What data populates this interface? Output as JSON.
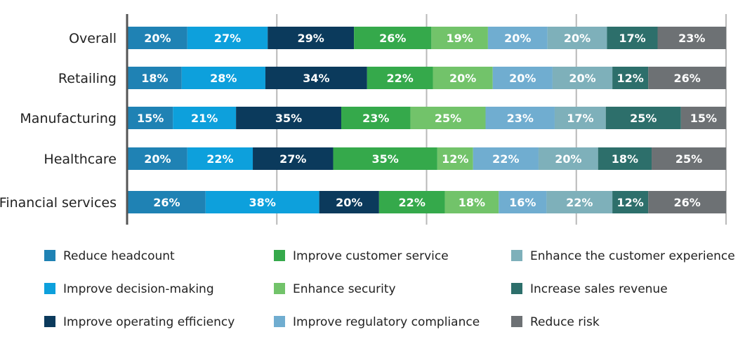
{
  "chart_data": {
    "type": "bar",
    "orientation": "horizontal",
    "stacked": true,
    "categories": [
      "Overall",
      "Retailing",
      "Manufacturing",
      "Healthcare",
      "Financial services"
    ],
    "grid": true,
    "legend_position": "bottom",
    "series": [
      {
        "name": "Reduce headcount",
        "color": "#1f82b4",
        "values": [
          20,
          18,
          15,
          20,
          26
        ]
      },
      {
        "name": "Improve decision-making",
        "color": "#0da0dc",
        "values": [
          27,
          28,
          21,
          22,
          38
        ]
      },
      {
        "name": "Improve operating efficiency",
        "color": "#0b3a5c",
        "values": [
          29,
          34,
          35,
          27,
          20
        ]
      },
      {
        "name": "Improve customer service",
        "color": "#35a94b",
        "values": [
          26,
          22,
          23,
          35,
          22
        ]
      },
      {
        "name": "Enhance security",
        "color": "#72c36a",
        "values": [
          19,
          20,
          25,
          12,
          18
        ]
      },
      {
        "name": "Improve regulatory compliance",
        "color": "#70add0",
        "values": [
          20,
          20,
          23,
          22,
          16
        ]
      },
      {
        "name": "Enhance the customer experience",
        "color": "#7eb0ba",
        "values": [
          20,
          20,
          17,
          20,
          22
        ]
      },
      {
        "name": "Increase sales revenue",
        "color": "#2d6f6b",
        "values": [
          17,
          12,
          25,
          18,
          12
        ]
      },
      {
        "name": "Reduce risk",
        "color": "#6d7174",
        "values": [
          23,
          26,
          15,
          25,
          26
        ]
      }
    ]
  }
}
